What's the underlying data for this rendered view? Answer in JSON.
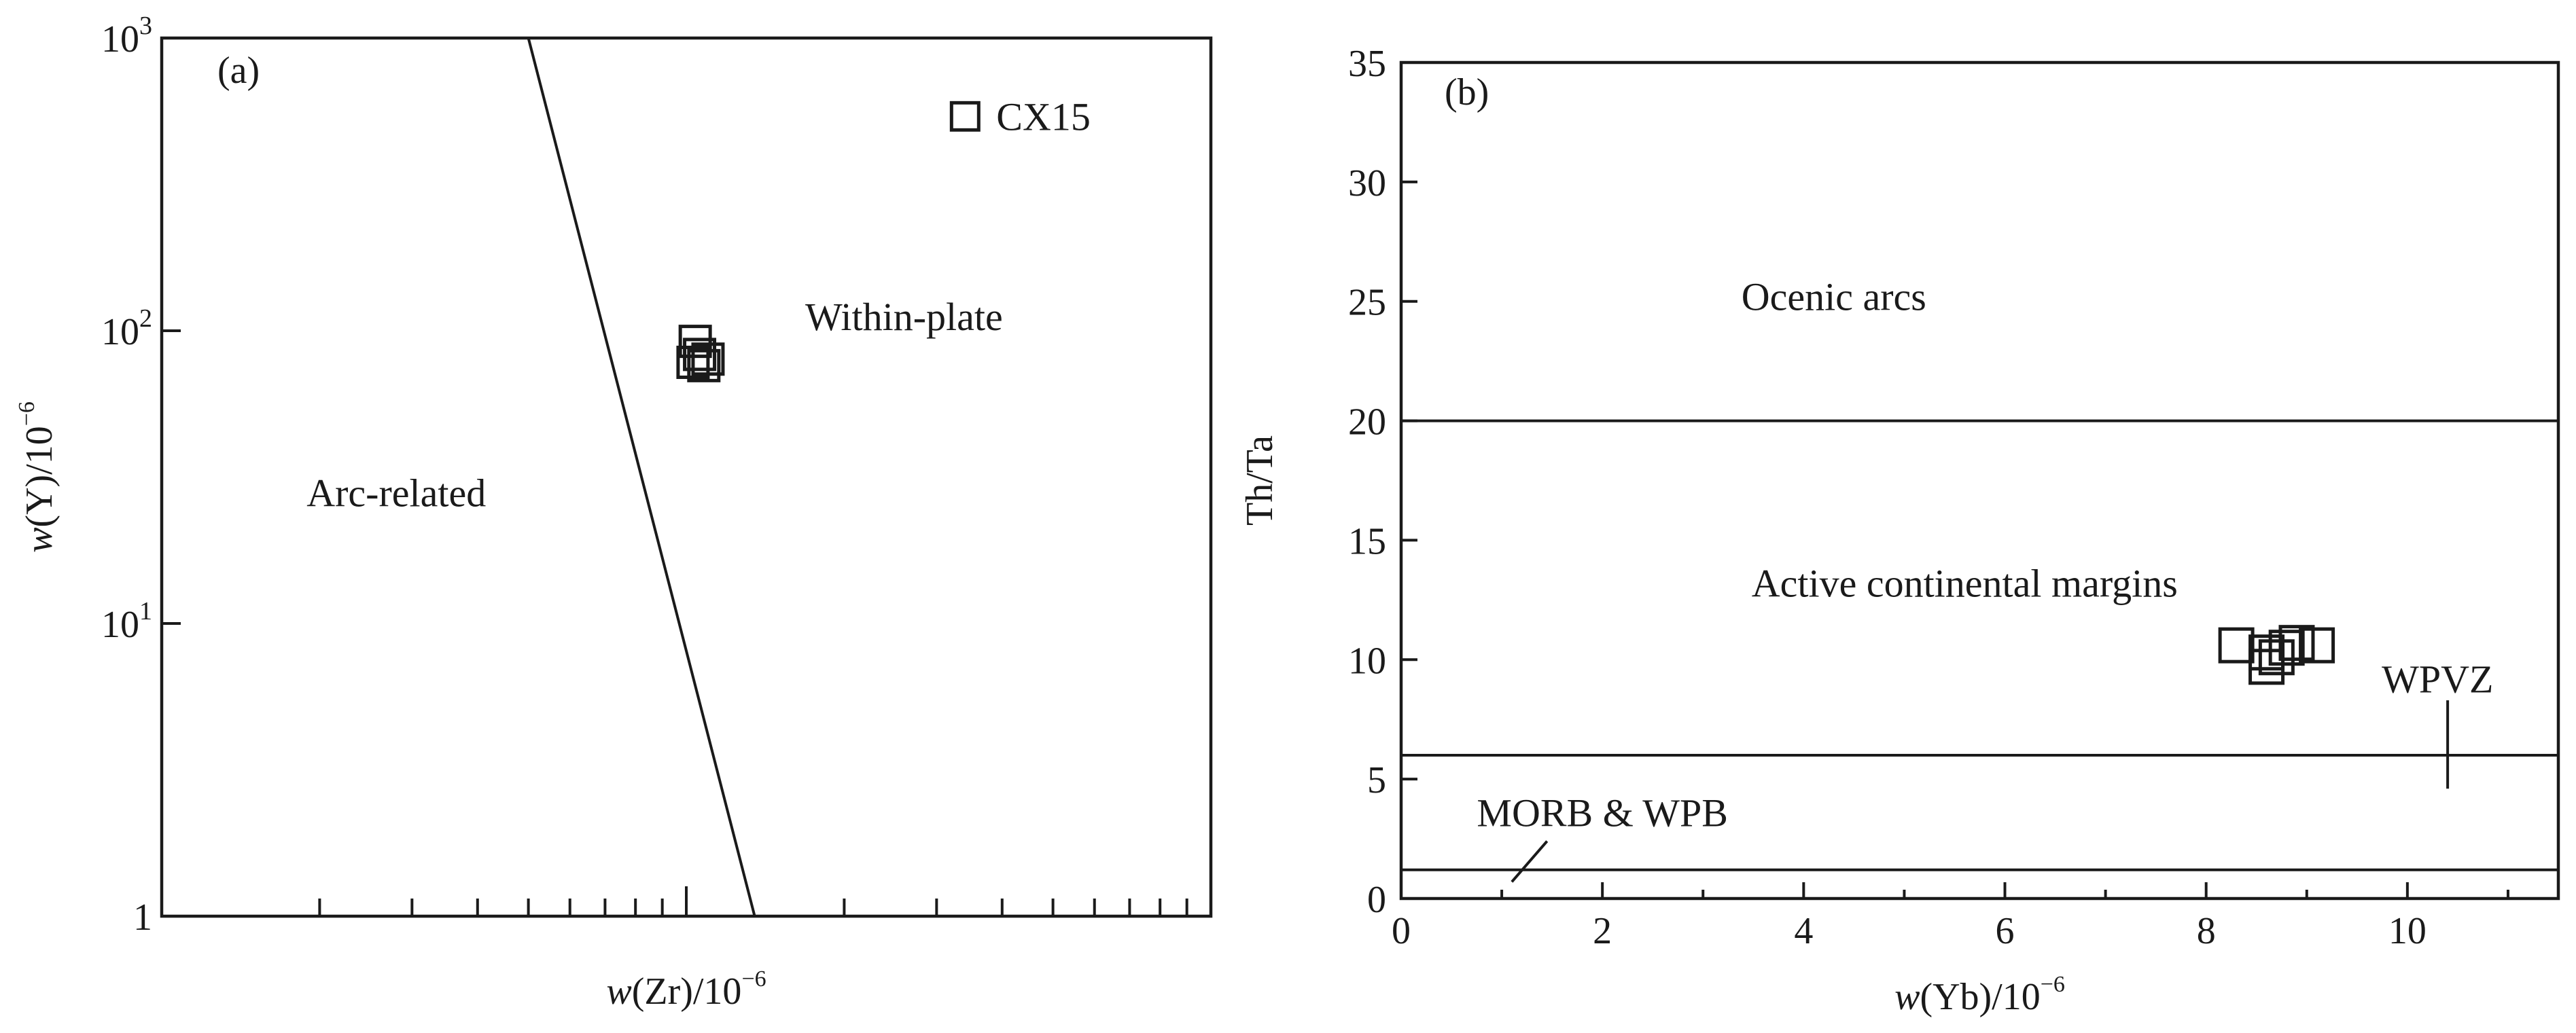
{
  "chart_data": [
    {
      "panel_label": "(a)",
      "type": "scatter",
      "xlabel": "w(Zr)/10",
      "xlabel_parts": {
        "var": "w",
        "rest": "(Zr)/10",
        "sup": "−6"
      },
      "ylabel": "w(Y)/10",
      "ylabel_parts": {
        "var": "w",
        "rest": "(Y)/10",
        "sup": "−6"
      },
      "x_log": true,
      "y_log": true,
      "xlim": [
        10,
        1000
      ],
      "ylim": [
        1,
        1000
      ],
      "x_tick_labels": [],
      "y_ticks": [
        {
          "value": 1,
          "base": "1",
          "sup": ""
        },
        {
          "value": 10,
          "base": "10",
          "sup": "1"
        },
        {
          "value": 100,
          "base": "10",
          "sup": "2"
        },
        {
          "value": 1000,
          "base": "10",
          "sup": "3"
        }
      ],
      "boundary": [
        [
          50,
          1000
        ],
        [
          135,
          1
        ]
      ],
      "fields": [
        {
          "label": "Arc-related",
          "x": 28,
          "y": 28
        },
        {
          "label": "Within-plate",
          "x": 260,
          "y": 112
        }
      ],
      "points": [
        {
          "x": 104,
          "y": 92
        },
        {
          "x": 106,
          "y": 83
        },
        {
          "x": 103,
          "y": 78
        },
        {
          "x": 108,
          "y": 76
        },
        {
          "x": 110,
          "y": 80
        }
      ],
      "annotated_point": {
        "x": 340,
        "y": 540,
        "label": "CX15"
      },
      "marker": "open-square",
      "grid": false
    },
    {
      "panel_label": "(b)",
      "type": "scatter",
      "xlabel": "w(Yb)/10",
      "xlabel_parts": {
        "var": "w",
        "rest": "(Yb)/10",
        "sup": "−6"
      },
      "ylabel": "Th/Ta",
      "xlim": [
        0,
        11.5
      ],
      "ylim": [
        0,
        35
      ],
      "x_ticks": [
        0,
        2,
        4,
        6,
        8,
        10
      ],
      "y_ticks": [
        0,
        5,
        10,
        15,
        20,
        25,
        30,
        35
      ],
      "boundaries": [
        {
          "y": 20
        },
        {
          "y": 6
        },
        {
          "y": 1.2
        }
      ],
      "fields": [
        {
          "label": "Ocenic arcs",
          "x": 4.3,
          "y": 25.2
        },
        {
          "label": "Active continental margins",
          "x": 5.6,
          "y": 13.2
        },
        {
          "label": "MORB & WPB",
          "x": 2.0,
          "y": 3.6
        },
        {
          "label": "WPVZ",
          "x": 10.3,
          "y": 9.2
        }
      ],
      "pointers": [
        {
          "from": [
            1.1,
            0.7
          ],
          "to": [
            1.45,
            2.4
          ]
        },
        {
          "from": [
            10.4,
            4.6
          ],
          "to": [
            10.4,
            8.3
          ]
        }
      ],
      "points": [
        {
          "x": 8.3,
          "y": 10.6
        },
        {
          "x": 8.6,
          "y": 10.3
        },
        {
          "x": 8.6,
          "y": 9.7
        },
        {
          "x": 8.7,
          "y": 10.1
        },
        {
          "x": 8.8,
          "y": 10.5
        },
        {
          "x": 8.9,
          "y": 10.7
        },
        {
          "x": 9.1,
          "y": 10.6
        }
      ],
      "marker": "open-square",
      "grid": false
    }
  ]
}
